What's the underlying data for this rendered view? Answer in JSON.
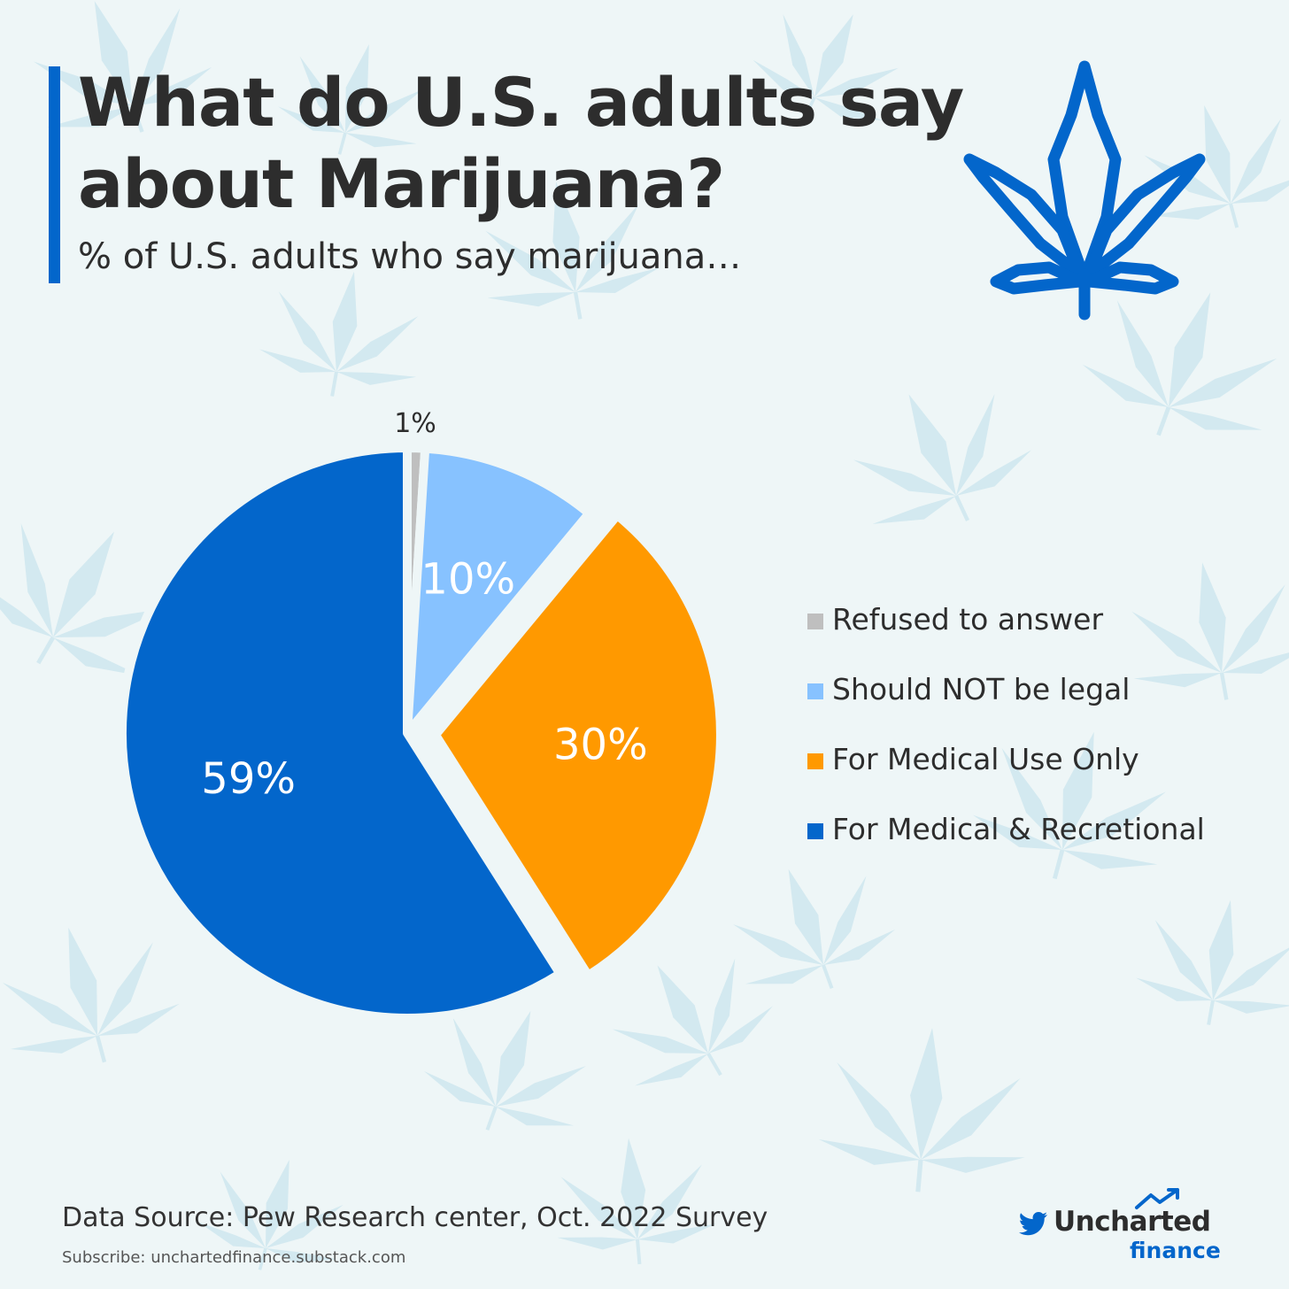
{
  "title": "What do U.S. adults say about Marijuana?",
  "subtitle": "% of U.S. adults who say marijuana…",
  "colors": {
    "background": "#eef6f7",
    "accent": "#0366cb",
    "leaf_pattern": "#d3e9f0"
  },
  "icons": {
    "hero": "cannabis-leaf-icon",
    "brand": "twitter-icon",
    "trend": "trend-arrow-icon"
  },
  "chart_data": {
    "type": "pie",
    "slices": [
      {
        "label": "Refused to answer",
        "value": 1,
        "display": "1%",
        "color": "#bfbfbf",
        "exploded": false
      },
      {
        "label": "Should NOT be legal",
        "value": 10,
        "display": "10%",
        "color": "#87c2ff",
        "exploded": false
      },
      {
        "label": "For Medical Use Only",
        "value": 30,
        "display": "30%",
        "color": "#ff9900",
        "exploded": true
      },
      {
        "label": "For Medical & Recretional",
        "value": 59,
        "display": "59%",
        "color": "#0366cb",
        "exploded": false
      }
    ],
    "legend_position": "right",
    "start": "top, clockwise"
  },
  "footer": {
    "source": "Data Source: Pew Research center, Oct. 2022 Survey",
    "subscribe": "Subscribe: unchartedfinance.substack.com"
  },
  "brand": {
    "name": "Uncharted",
    "sub": "finance"
  }
}
